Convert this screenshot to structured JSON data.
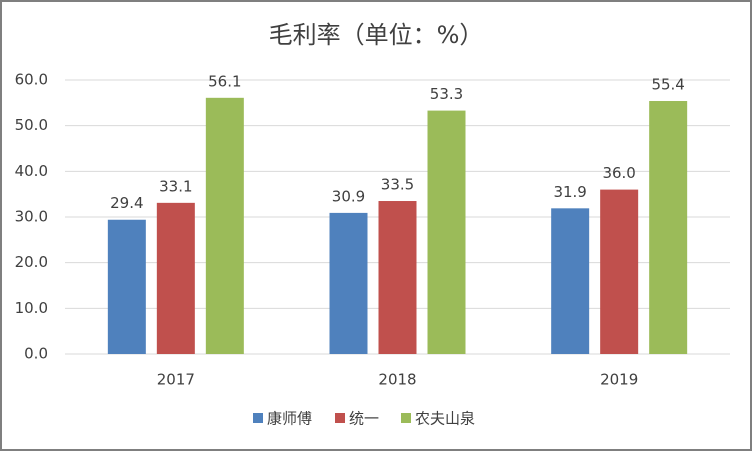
{
  "chart_data": {
    "type": "bar",
    "title": "毛利率（单位：%）",
    "categories": [
      "2017",
      "2018",
      "2019"
    ],
    "series": [
      {
        "name": "康师傅",
        "color": "#4f81bd",
        "values": [
          29.4,
          30.9,
          31.9
        ],
        "value_labels": [
          "29.4",
          "30.9",
          "31.9"
        ]
      },
      {
        "name": "统一",
        "color": "#c0504d",
        "values": [
          33.1,
          33.5,
          36.0
        ],
        "value_labels": [
          "33.1",
          "33.5",
          "36.0"
        ]
      },
      {
        "name": "农夫山泉",
        "color": "#9bbb59",
        "values": [
          56.1,
          53.3,
          55.4
        ],
        "value_labels": [
          "56.1",
          "53.3",
          "55.4"
        ]
      }
    ],
    "ylim": [
      0,
      60
    ],
    "yticks": [
      {
        "value": 0,
        "label": "0.0"
      },
      {
        "value": 10,
        "label": "10.0"
      },
      {
        "value": 20,
        "label": "20.0"
      },
      {
        "value": 30,
        "label": "30.0"
      },
      {
        "value": 40,
        "label": "40.0"
      },
      {
        "value": 50,
        "label": "50.0"
      },
      {
        "value": 60,
        "label": "60.0"
      }
    ],
    "grid": true,
    "legend": "bottom"
  }
}
